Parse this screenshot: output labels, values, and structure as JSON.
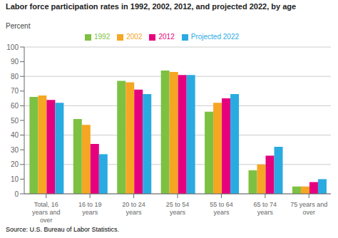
{
  "chart_data": {
    "type": "bar",
    "title": "Labor force participation rates in 1992, 2002, 2012, and projected 2022, by age",
    "ylabel": "Percent",
    "annotations": [
      "Source: U.S. Bureau of Labor Statistics."
    ],
    "categories": [
      "Total, 16\nyears and\nover",
      "16 to 19\nyears",
      "20 to 24\nyears",
      "25 to 54\nyears",
      "55 to 64\nyears",
      "65 to 74\nyears",
      "75 years and\nover"
    ],
    "series": [
      {
        "name": "1992",
        "color": "#7dc142",
        "values": [
          66,
          51,
          77,
          84,
          56,
          16,
          5
        ]
      },
      {
        "name": "2002",
        "color": "#f5a623",
        "values": [
          67,
          47,
          76,
          83,
          62,
          20,
          5
        ]
      },
      {
        "name": "2012",
        "color": "#e5007e",
        "values": [
          64,
          34,
          71,
          81,
          65,
          26,
          8
        ]
      },
      {
        "name": "Projected 2022",
        "color": "#29abe2",
        "values": [
          62,
          27,
          68,
          81,
          68,
          32,
          10
        ]
      }
    ],
    "ylim": [
      0,
      100
    ],
    "yticks": [
      0,
      10,
      20,
      30,
      40,
      50,
      60,
      70,
      80,
      90,
      100
    ],
    "grid": true,
    "legend": "top"
  }
}
